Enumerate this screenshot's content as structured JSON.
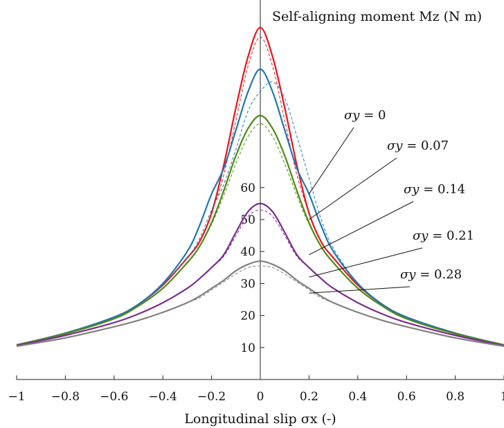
{
  "chart_data": {
    "type": "line",
    "title": "",
    "xlabel": "Longitudinal slip σx (-)",
    "ylabel": "Self-aligning moment Mz (N m)",
    "xlim": [
      -1,
      1
    ],
    "ylim": [
      0,
      115
    ],
    "x_ticks": [
      "−1",
      "−0.8",
      "−0.6",
      "−0.4",
      "−0.2",
      "0",
      "0.2",
      "0.4",
      "0.6",
      "0.8",
      "1"
    ],
    "y_ticks": [
      "10",
      "20",
      "30",
      "40",
      "50",
      "60"
    ],
    "legend": "annotations with leader lines, right side",
    "grid": false,
    "x": [
      -1,
      -0.8,
      -0.6,
      -0.5,
      -0.4,
      -0.3,
      -0.25,
      -0.2,
      -0.15,
      -0.1,
      -0.05,
      0,
      0.05,
      0.1,
      0.15,
      0.2,
      0.25,
      0.3,
      0.4,
      0.5,
      0.6,
      0.8,
      1
    ],
    "series": [
      {
        "name": "σy = 0",
        "label_main": "σy",
        "label_rest": " = 0",
        "color": "#e8141d",
        "style": "solid",
        "values": [
          10.8,
          14.5,
          19.5,
          23.5,
          29.5,
          38,
          43,
          52,
          67,
          85,
          101,
          110,
          101,
          85,
          67,
          52,
          43,
          38,
          29.5,
          23.5,
          19.5,
          14.5,
          10.8
        ]
      },
      {
        "name": "σy = 0 (dashed)",
        "color": "#e8141d",
        "style": "dashed",
        "values": [
          10.8,
          14.5,
          19.5,
          23.5,
          29.5,
          38,
          43,
          52,
          64,
          81,
          98,
          107,
          98,
          81,
          64,
          52,
          43,
          38,
          29.5,
          23.5,
          19.5,
          14.5,
          10.8
        ]
      },
      {
        "name": "σy = 0.07",
        "label_main": "σy",
        "label_rest": " = 0.07",
        "color": "#1f77b4",
        "style": "solid",
        "values": [
          10.8,
          14.5,
          19.5,
          23.5,
          30,
          40,
          48,
          58,
          66,
          78,
          90,
          97,
          90,
          78,
          66,
          58,
          48,
          40,
          30,
          23.5,
          19.5,
          14.5,
          10.8
        ]
      },
      {
        "name": "σy = 0.07 (dashed)",
        "color": "#1f77b4",
        "style": "dashed",
        "values": [
          10.8,
          14.5,
          19.5,
          23.5,
          29.5,
          38,
          44,
          53,
          61,
          72,
          84,
          90,
          93,
          88,
          76,
          63,
          50,
          41,
          30,
          23.5,
          19.5,
          14.5,
          10.8
        ]
      },
      {
        "name": "σy = 0.14",
        "label_main": "σy",
        "label_rest": " = 0.14",
        "color": "#4e8a12",
        "style": "solid",
        "values": [
          10.8,
          14.3,
          19,
          23,
          28.5,
          36.5,
          41.5,
          49,
          59,
          70,
          78.5,
          82.5,
          78.5,
          70,
          59,
          49,
          41.5,
          36.5,
          28.5,
          23,
          19,
          14.3,
          10.8
        ]
      },
      {
        "name": "σy = 0.14 (dashed)",
        "color": "#4e8a12",
        "style": "dashed",
        "values": [
          10.8,
          14.3,
          19,
          23,
          28.5,
          36.5,
          41.5,
          48.5,
          57.5,
          67.5,
          76,
          80,
          76,
          67.5,
          57.5,
          48.5,
          41.5,
          36.5,
          28.5,
          23,
          19,
          14.3,
          10.8
        ]
      },
      {
        "name": "σy = 0.21",
        "label_main": "σy",
        "label_rest": " = 0.21",
        "color": "#7b2d8e",
        "style": "solid",
        "values": [
          10.6,
          13.8,
          17.8,
          20.5,
          24,
          28.5,
          31.5,
          35,
          39,
          46,
          52.5,
          55,
          52.5,
          46,
          39,
          35,
          31.5,
          28.5,
          24,
          20.5,
          17.8,
          13.8,
          10.6
        ]
      },
      {
        "name": "σy = 0.21 (dashed)",
        "color": "#7b2d8e",
        "style": "dashed",
        "values": [
          10.6,
          13.8,
          17.8,
          20.5,
          24,
          28.5,
          31.5,
          35,
          38.5,
          45,
          51,
          53,
          51,
          45,
          38.5,
          35,
          31.5,
          28.5,
          24,
          20.5,
          17.8,
          13.8,
          10.6
        ]
      },
      {
        "name": "σy = 0.28",
        "label_main": "σy",
        "label_rest": " = 0.28",
        "color": "#808080",
        "style": "solid",
        "values": [
          10.4,
          13,
          16.5,
          18.5,
          21,
          24,
          26,
          28.5,
          31,
          34,
          36,
          37,
          36,
          34,
          31,
          28.5,
          26,
          24,
          21,
          18.5,
          16.5,
          13,
          10.4
        ]
      },
      {
        "name": "σy = 0.28 (dashed)",
        "color": "#808080",
        "style": "dashed",
        "values": [
          10.4,
          13,
          16.5,
          18.5,
          21,
          24,
          25.5,
          28,
          30.5,
          33,
          35,
          35.5,
          35,
          33,
          30.5,
          28,
          25.5,
          24,
          21,
          18.5,
          16.5,
          13,
          10.4
        ]
      }
    ],
    "annotations": [
      {
        "series": "σy = 0",
        "text_main": "σy",
        "text_rest": " = 0",
        "point": [
          0.2,
          58
        ]
      },
      {
        "series": "σy = 0.07",
        "text_main": "σy",
        "text_rest": " = 0.07",
        "point": [
          0.2,
          50
        ]
      },
      {
        "series": "σy = 0.14",
        "text_main": "σy",
        "text_rest": " = 0.14",
        "point": [
          0.2,
          39
        ]
      },
      {
        "series": "σy = 0.21",
        "text_main": "σy",
        "text_rest": " = 0.21",
        "point": [
          0.2,
          32
        ]
      },
      {
        "series": "σy = 0.28",
        "text_main": "σy",
        "text_rest": " = 0.28",
        "point": [
          0.2,
          27
        ]
      }
    ]
  }
}
